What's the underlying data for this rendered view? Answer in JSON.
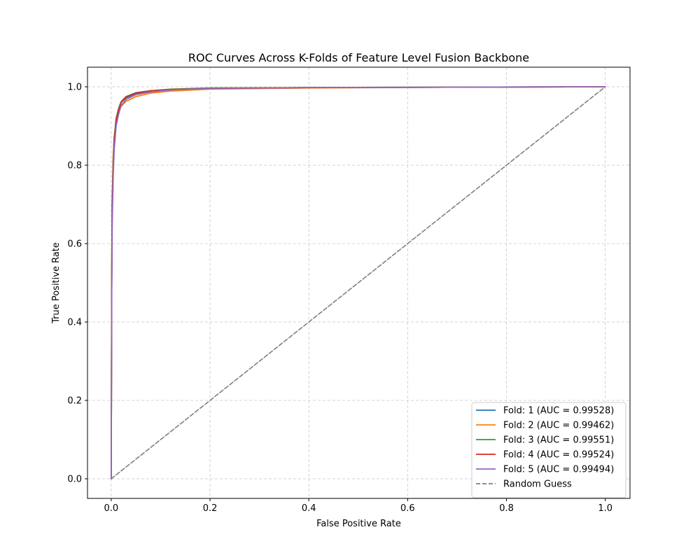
{
  "chart_data": {
    "type": "line",
    "title": "ROC Curves Across K-Folds of Feature Level Fusion Backbone",
    "xlabel": "False Positive Rate",
    "ylabel": "True Positive Rate",
    "xlim": [
      -0.048,
      1.05
    ],
    "ylim": [
      -0.05,
      1.05
    ],
    "xticks": [
      0.0,
      0.2,
      0.4,
      0.6,
      0.8,
      1.0
    ],
    "yticks": [
      0.0,
      0.2,
      0.4,
      0.6,
      0.8,
      1.0
    ],
    "xtick_labels": [
      "0.0",
      "0.2",
      "0.4",
      "0.6",
      "0.8",
      "1.0"
    ],
    "ytick_labels": [
      "0.0",
      "0.2",
      "0.4",
      "0.6",
      "0.8",
      "1.0"
    ],
    "grid": true,
    "legend_position": "lower-right",
    "series": [
      {
        "name": "Fold: 1 (AUC = 0.99528)",
        "color": "#1f77b4",
        "style": "solid",
        "points": [
          [
            0,
            0
          ],
          [
            0.001,
            0.52
          ],
          [
            0.002,
            0.7
          ],
          [
            0.004,
            0.8
          ],
          [
            0.006,
            0.86
          ],
          [
            0.01,
            0.91
          ],
          [
            0.015,
            0.94
          ],
          [
            0.02,
            0.96
          ],
          [
            0.03,
            0.972
          ],
          [
            0.05,
            0.983
          ],
          [
            0.08,
            0.989
          ],
          [
            0.12,
            0.993
          ],
          [
            0.2,
            0.996
          ],
          [
            0.4,
            0.998
          ],
          [
            0.7,
            0.999
          ],
          [
            1.0,
            1.0
          ]
        ]
      },
      {
        "name": "Fold: 2 (AUC = 0.99462)",
        "color": "#ff7f0e",
        "style": "solid",
        "points": [
          [
            0,
            0
          ],
          [
            0.001,
            0.55
          ],
          [
            0.002,
            0.72
          ],
          [
            0.004,
            0.82
          ],
          [
            0.006,
            0.87
          ],
          [
            0.01,
            0.91
          ],
          [
            0.015,
            0.935
          ],
          [
            0.02,
            0.95
          ],
          [
            0.03,
            0.963
          ],
          [
            0.05,
            0.975
          ],
          [
            0.08,
            0.984
          ],
          [
            0.12,
            0.989
          ],
          [
            0.2,
            0.994
          ],
          [
            0.4,
            0.997
          ],
          [
            0.7,
            0.999
          ],
          [
            1.0,
            1.0
          ]
        ]
      },
      {
        "name": "Fold: 3 (AUC = 0.99551)",
        "color": "#2ca02c",
        "style": "solid",
        "points": [
          [
            0,
            0
          ],
          [
            0.001,
            0.5
          ],
          [
            0.002,
            0.7
          ],
          [
            0.004,
            0.81
          ],
          [
            0.006,
            0.87
          ],
          [
            0.01,
            0.92
          ],
          [
            0.015,
            0.945
          ],
          [
            0.02,
            0.962
          ],
          [
            0.03,
            0.975
          ],
          [
            0.05,
            0.985
          ],
          [
            0.08,
            0.99
          ],
          [
            0.12,
            0.994
          ],
          [
            0.2,
            0.997
          ],
          [
            0.4,
            0.998
          ],
          [
            0.7,
            0.999
          ],
          [
            1.0,
            1.0
          ]
        ]
      },
      {
        "name": "Fold: 4 (AUC = 0.99524)",
        "color": "#d62728",
        "style": "solid",
        "points": [
          [
            0,
            0
          ],
          [
            0.001,
            0.48
          ],
          [
            0.002,
            0.68
          ],
          [
            0.004,
            0.8
          ],
          [
            0.006,
            0.86
          ],
          [
            0.01,
            0.915
          ],
          [
            0.015,
            0.942
          ],
          [
            0.02,
            0.96
          ],
          [
            0.03,
            0.974
          ],
          [
            0.05,
            0.984
          ],
          [
            0.08,
            0.99
          ],
          [
            0.12,
            0.993
          ],
          [
            0.2,
            0.996
          ],
          [
            0.4,
            0.998
          ],
          [
            0.7,
            0.999
          ],
          [
            1.0,
            1.0
          ]
        ]
      },
      {
        "name": "Fold: 5 (AUC = 0.99494)",
        "color": "#9467bd",
        "style": "solid",
        "points": [
          [
            0,
            0
          ],
          [
            0.001,
            0.45
          ],
          [
            0.002,
            0.65
          ],
          [
            0.004,
            0.77
          ],
          [
            0.006,
            0.84
          ],
          [
            0.01,
            0.9
          ],
          [
            0.015,
            0.93
          ],
          [
            0.02,
            0.952
          ],
          [
            0.03,
            0.968
          ],
          [
            0.05,
            0.98
          ],
          [
            0.08,
            0.987
          ],
          [
            0.12,
            0.992
          ],
          [
            0.2,
            0.996
          ],
          [
            0.4,
            0.998
          ],
          [
            0.7,
            0.999
          ],
          [
            1.0,
            1.0
          ]
        ]
      },
      {
        "name": "Random Guess",
        "color": "#808080",
        "style": "dashed",
        "points": [
          [
            0,
            0
          ],
          [
            1.0,
            1.0
          ]
        ]
      }
    ]
  }
}
